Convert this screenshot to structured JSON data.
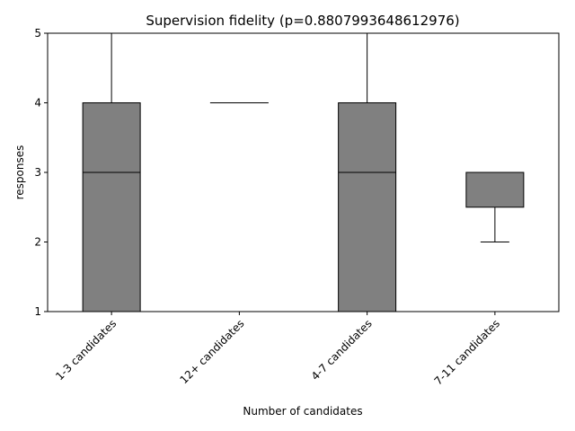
{
  "chart_data": {
    "type": "box",
    "title": "Supervision fidelity (p=0.8807993648612976)",
    "xlabel": "Number of candidates",
    "ylabel": "responses",
    "ylim": [
      1,
      5
    ],
    "yticks": [
      1,
      2,
      3,
      4,
      5
    ],
    "box_color": "#808080",
    "categories": [
      "1-3 candidates",
      "12+ candidates",
      "4-7 candidates",
      "7-11 candidates"
    ],
    "boxes": [
      {
        "whislo": 1,
        "q1": 1,
        "med": 3,
        "q3": 4,
        "whishi": 5
      },
      {
        "whislo": 4,
        "q1": 4,
        "med": 4,
        "q3": 4,
        "whishi": 4
      },
      {
        "whislo": 1,
        "q1": 1,
        "med": 3,
        "q3": 4,
        "whishi": 5
      },
      {
        "whislo": 2,
        "q1": 2.5,
        "med": 3,
        "q3": 3,
        "whishi": 3
      }
    ]
  }
}
